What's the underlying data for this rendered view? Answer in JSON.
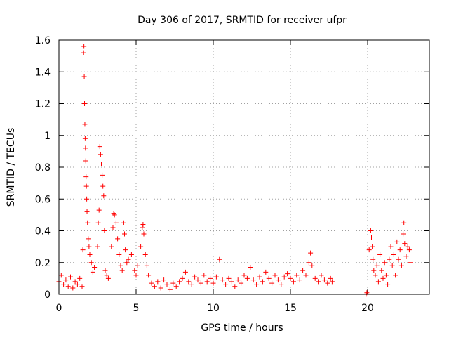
{
  "chart_data": {
    "type": "scatter",
    "title": "Day 306 of 2017, SRMTID for receiver ufpr",
    "xlabel": "GPS time / hours",
    "ylabel": "SRMTID / TECUs",
    "xlim": [
      0,
      24
    ],
    "ylim": [
      0,
      1.6
    ],
    "xticks": [
      0,
      5,
      10,
      15,
      20
    ],
    "yticks": [
      0,
      0.2,
      0.4,
      0.6,
      0.8,
      1.0,
      1.2,
      1.4,
      1.6
    ],
    "xtick_labels": [
      "0",
      "5",
      "10",
      "15",
      "20"
    ],
    "ytick_labels": [
      "0",
      "0.2",
      "0.4",
      "0.6",
      "0.8",
      "1",
      "1.2",
      "1.4",
      "1.6"
    ],
    "grid": true,
    "marker": "+",
    "color": "#ff0000",
    "series": [
      {
        "name": "SRMTID",
        "points": [
          [
            0.0,
            0.08
          ],
          [
            0.15,
            0.12
          ],
          [
            0.3,
            0.06
          ],
          [
            0.45,
            0.09
          ],
          [
            0.6,
            0.05
          ],
          [
            0.75,
            0.11
          ],
          [
            0.9,
            0.04
          ],
          [
            1.05,
            0.08
          ],
          [
            1.2,
            0.06
          ],
          [
            1.35,
            0.1
          ],
          [
            1.5,
            0.05
          ],
          [
            1.55,
            0.28
          ],
          [
            1.6,
            1.52
          ],
          [
            1.62,
            1.56
          ],
          [
            1.64,
            1.37
          ],
          [
            1.66,
            1.2
          ],
          [
            1.68,
            1.07
          ],
          [
            1.7,
            0.98
          ],
          [
            1.72,
            0.92
          ],
          [
            1.74,
            0.84
          ],
          [
            1.76,
            0.74
          ],
          [
            1.78,
            0.68
          ],
          [
            1.8,
            0.6
          ],
          [
            1.82,
            0.52
          ],
          [
            1.85,
            0.45
          ],
          [
            1.9,
            0.35
          ],
          [
            1.95,
            0.3
          ],
          [
            2.0,
            0.25
          ],
          [
            2.1,
            0.2
          ],
          [
            2.2,
            0.14
          ],
          [
            2.3,
            0.17
          ],
          [
            2.5,
            0.3
          ],
          [
            2.55,
            0.45
          ],
          [
            2.6,
            0.53
          ],
          [
            2.65,
            0.93
          ],
          [
            2.7,
            0.88
          ],
          [
            2.75,
            0.82
          ],
          [
            2.8,
            0.75
          ],
          [
            2.85,
            0.68
          ],
          [
            2.9,
            0.62
          ],
          [
            2.95,
            0.4
          ],
          [
            3.0,
            0.15
          ],
          [
            3.1,
            0.12
          ],
          [
            3.2,
            0.1
          ],
          [
            3.4,
            0.3
          ],
          [
            3.5,
            0.42
          ],
          [
            3.55,
            0.51
          ],
          [
            3.6,
            0.5
          ],
          [
            3.7,
            0.45
          ],
          [
            3.8,
            0.35
          ],
          [
            3.9,
            0.25
          ],
          [
            4.0,
            0.18
          ],
          [
            4.1,
            0.15
          ],
          [
            4.2,
            0.45
          ],
          [
            4.25,
            0.38
          ],
          [
            4.3,
            0.28
          ],
          [
            4.4,
            0.2
          ],
          [
            4.5,
            0.22
          ],
          [
            4.7,
            0.25
          ],
          [
            4.9,
            0.15
          ],
          [
            5.0,
            0.12
          ],
          [
            5.1,
            0.18
          ],
          [
            5.3,
            0.3
          ],
          [
            5.4,
            0.42
          ],
          [
            5.45,
            0.44
          ],
          [
            5.5,
            0.38
          ],
          [
            5.6,
            0.25
          ],
          [
            5.7,
            0.18
          ],
          [
            5.8,
            0.12
          ],
          [
            6.0,
            0.07
          ],
          [
            6.2,
            0.05
          ],
          [
            6.4,
            0.08
          ],
          [
            6.6,
            0.04
          ],
          [
            6.8,
            0.09
          ],
          [
            7.0,
            0.06
          ],
          [
            7.2,
            0.03
          ],
          [
            7.4,
            0.07
          ],
          [
            7.6,
            0.05
          ],
          [
            7.8,
            0.08
          ],
          [
            8.0,
            0.1
          ],
          [
            8.2,
            0.14
          ],
          [
            8.4,
            0.08
          ],
          [
            8.6,
            0.06
          ],
          [
            8.8,
            0.11
          ],
          [
            9.0,
            0.09
          ],
          [
            9.2,
            0.07
          ],
          [
            9.4,
            0.12
          ],
          [
            9.6,
            0.08
          ],
          [
            9.8,
            0.1
          ],
          [
            10.0,
            0.07
          ],
          [
            10.2,
            0.11
          ],
          [
            10.4,
            0.22
          ],
          [
            10.6,
            0.09
          ],
          [
            10.8,
            0.06
          ],
          [
            11.0,
            0.1
          ],
          [
            11.2,
            0.08
          ],
          [
            11.4,
            0.05
          ],
          [
            11.6,
            0.09
          ],
          [
            11.8,
            0.07
          ],
          [
            12.0,
            0.12
          ],
          [
            12.2,
            0.1
          ],
          [
            12.4,
            0.17
          ],
          [
            12.6,
            0.09
          ],
          [
            12.8,
            0.06
          ],
          [
            13.0,
            0.11
          ],
          [
            13.2,
            0.08
          ],
          [
            13.4,
            0.14
          ],
          [
            13.6,
            0.1
          ],
          [
            13.8,
            0.07
          ],
          [
            14.0,
            0.12
          ],
          [
            14.2,
            0.09
          ],
          [
            14.4,
            0.06
          ],
          [
            14.6,
            0.11
          ],
          [
            14.8,
            0.13
          ],
          [
            15.0,
            0.1
          ],
          [
            15.2,
            0.08
          ],
          [
            15.4,
            0.12
          ],
          [
            15.6,
            0.09
          ],
          [
            15.8,
            0.15
          ],
          [
            16.0,
            0.12
          ],
          [
            16.2,
            0.2
          ],
          [
            16.3,
            0.26
          ],
          [
            16.4,
            0.18
          ],
          [
            16.6,
            0.1
          ],
          [
            16.8,
            0.08
          ],
          [
            17.0,
            0.12
          ],
          [
            17.2,
            0.09
          ],
          [
            17.4,
            0.07
          ],
          [
            17.6,
            0.1
          ],
          [
            17.7,
            0.08
          ],
          [
            19.9,
            0.0
          ],
          [
            19.95,
            0.01
          ],
          [
            20.1,
            0.28
          ],
          [
            20.2,
            0.4
          ],
          [
            20.25,
            0.36
          ],
          [
            20.3,
            0.3
          ],
          [
            20.35,
            0.22
          ],
          [
            20.4,
            0.15
          ],
          [
            20.5,
            0.12
          ],
          [
            20.6,
            0.18
          ],
          [
            20.7,
            0.08
          ],
          [
            20.8,
            0.25
          ],
          [
            20.9,
            0.15
          ],
          [
            21.0,
            0.1
          ],
          [
            21.1,
            0.2
          ],
          [
            21.2,
            0.12
          ],
          [
            21.3,
            0.06
          ],
          [
            21.4,
            0.22
          ],
          [
            21.5,
            0.3
          ],
          [
            21.6,
            0.18
          ],
          [
            21.7,
            0.25
          ],
          [
            21.8,
            0.12
          ],
          [
            21.9,
            0.33
          ],
          [
            22.0,
            0.22
          ],
          [
            22.1,
            0.28
          ],
          [
            22.2,
            0.18
          ],
          [
            22.3,
            0.38
          ],
          [
            22.35,
            0.45
          ],
          [
            22.4,
            0.32
          ],
          [
            22.5,
            0.24
          ],
          [
            22.6,
            0.3
          ],
          [
            22.7,
            0.28
          ],
          [
            22.75,
            0.2
          ]
        ]
      }
    ]
  }
}
